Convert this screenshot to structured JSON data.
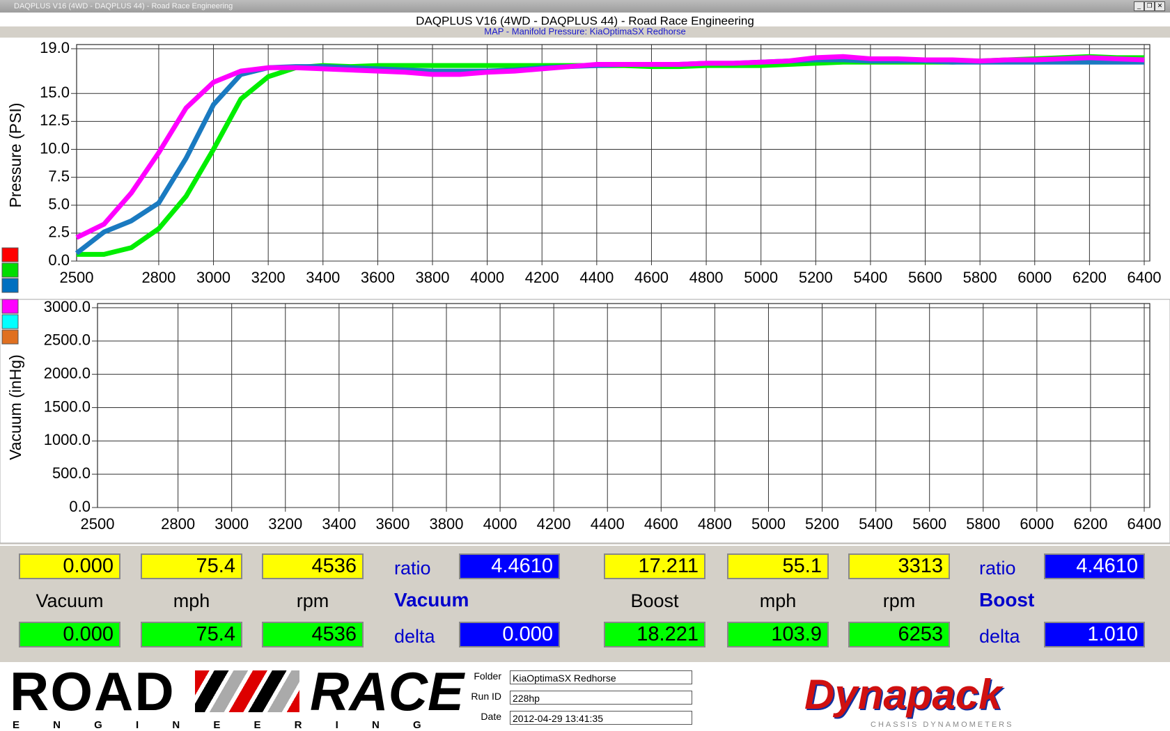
{
  "window": {
    "title": "DAQPLUS V16 (4WD - DAQPLUS 44) - Road Race Engineering"
  },
  "chart_data": [
    {
      "type": "line",
      "title": "MAP - Manifold Pressure: KiaOptimaSX Redhorse",
      "y_label": "Pressure (PSI)",
      "x": [
        2500,
        2600,
        2700,
        2800,
        2900,
        3000,
        3100,
        3200,
        3300,
        3400,
        3500,
        3600,
        3700,
        3800,
        3900,
        4000,
        4100,
        4200,
        4300,
        4400,
        4500,
        4600,
        4700,
        4800,
        4900,
        5000,
        5100,
        5200,
        5300,
        5400,
        5500,
        5600,
        5700,
        5800,
        5900,
        6000,
        6100,
        6200,
        6300,
        6400
      ],
      "series": [
        {
          "color": "#00ee00",
          "values": [
            0.6,
            0.6,
            1.2,
            2.9,
            5.8,
            10.0,
            14.5,
            16.5,
            17.3,
            17.5,
            17.4,
            17.5,
            17.5,
            17.5,
            17.5,
            17.5,
            17.5,
            17.5,
            17.5,
            17.5,
            17.5,
            17.4,
            17.4,
            17.5,
            17.5,
            17.5,
            17.6,
            17.7,
            17.8,
            17.8,
            17.8,
            17.8,
            17.8,
            17.9,
            18.0,
            18.1,
            18.2,
            18.3,
            18.2,
            18.2
          ]
        },
        {
          "color": "#1a7ac0",
          "values": [
            0.7,
            2.6,
            3.6,
            5.2,
            9.2,
            14.0,
            16.7,
            17.3,
            17.4,
            17.4,
            17.3,
            17.2,
            17.1,
            17.0,
            17.0,
            17.0,
            17.1,
            17.3,
            17.4,
            17.5,
            17.6,
            17.6,
            17.6,
            17.7,
            17.7,
            17.8,
            17.9,
            18.0,
            18.0,
            17.9,
            17.9,
            17.9,
            17.8,
            17.8,
            17.8,
            17.8,
            17.8,
            17.8,
            17.8,
            17.8
          ]
        },
        {
          "color": "#ff00ff",
          "values": [
            2.1,
            3.3,
            6.1,
            9.7,
            13.7,
            16.0,
            17.0,
            17.3,
            17.3,
            17.2,
            17.1,
            17.0,
            16.9,
            16.7,
            16.7,
            16.9,
            17.0,
            17.2,
            17.4,
            17.6,
            17.6,
            17.6,
            17.6,
            17.7,
            17.7,
            17.8,
            17.9,
            18.2,
            18.3,
            18.1,
            18.1,
            18.0,
            18.0,
            17.9,
            18.0,
            18.0,
            18.1,
            18.2,
            18.1,
            18.0
          ]
        }
      ],
      "xlim": [
        2500,
        6400
      ],
      "ylim": [
        0,
        19
      ],
      "xticks": [
        2500,
        2800,
        3000,
        3200,
        3400,
        3600,
        3800,
        4000,
        4200,
        4400,
        4600,
        4800,
        5000,
        5200,
        5400,
        5600,
        5800,
        6000,
        6200,
        6400
      ],
      "yticks": [
        {
          "value": 0,
          "label": "0.0"
        },
        {
          "value": 2.5,
          "label": "2.5"
        },
        {
          "value": 5,
          "label": "5.0"
        },
        {
          "value": 7.5,
          "label": "7.5"
        },
        {
          "value": 10,
          "label": "10.0"
        },
        {
          "value": 12.5,
          "label": "12.5"
        },
        {
          "value": 15,
          "label": "15.0"
        },
        {
          "value": 19,
          "label": "19.0"
        }
      ],
      "grid": true,
      "legend_colors": [
        "#ff0000",
        "#00dd00",
        "#0070c0"
      ]
    },
    {
      "type": "line",
      "y_label": "Vacuum (inHg)",
      "x": [],
      "series": [],
      "xlim": [
        2500,
        6400
      ],
      "ylim": [
        0,
        3000
      ],
      "xticks": [
        2500,
        2800,
        3000,
        3200,
        3400,
        3600,
        3800,
        4000,
        4200,
        4400,
        4600,
        4800,
        5000,
        5200,
        5400,
        5600,
        5800,
        6000,
        6200,
        6400
      ],
      "yticks": [
        {
          "value": 0,
          "label": "0.0"
        },
        {
          "value": 500,
          "label": "500.0"
        },
        {
          "value": 1000,
          "label": "1000.0"
        },
        {
          "value": 1500,
          "label": "1500.0"
        },
        {
          "value": 2000,
          "label": "2000.0"
        },
        {
          "value": 2500,
          "label": "2500.0"
        },
        {
          "value": 3000,
          "label": "3000.0"
        }
      ],
      "grid": true,
      "legend_colors": [
        "#ff00ff",
        "#00ffff",
        "#e07020"
      ]
    }
  ],
  "panel": {
    "groups": [
      {
        "title": "Vacuum",
        "top": [
          "0.000",
          "75.4",
          "4536"
        ],
        "labels": [
          "Vacuum",
          "mph",
          "rpm"
        ],
        "bottom": [
          "0.000",
          "75.4",
          "4536"
        ],
        "ratio_label": "ratio",
        "ratio": "4.4610",
        "delta_label": "delta",
        "delta": "0.000"
      },
      {
        "title": "Boost",
        "top": [
          "17.211",
          "55.1",
          "3313"
        ],
        "labels": [
          "Boost",
          "mph",
          "rpm"
        ],
        "bottom": [
          "18.221",
          "103.9",
          "6253"
        ],
        "ratio_label": "ratio",
        "ratio": "4.4610",
        "delta_label": "delta",
        "delta": "1.010"
      }
    ]
  },
  "footer": {
    "logo_left": "ROAD",
    "logo_right": "RACE",
    "logo_sub": "E N G I N E E R I N G",
    "fields": [
      {
        "label": "Folder",
        "value": "KiaOptimaSX Redhorse"
      },
      {
        "label": "Run ID",
        "value": "228hp"
      },
      {
        "label": "Date",
        "value": "2012-04-29 13:41:35"
      }
    ],
    "brand": "Dynapack",
    "brand_sub": "CHASSIS DYNAMOMETERS"
  }
}
